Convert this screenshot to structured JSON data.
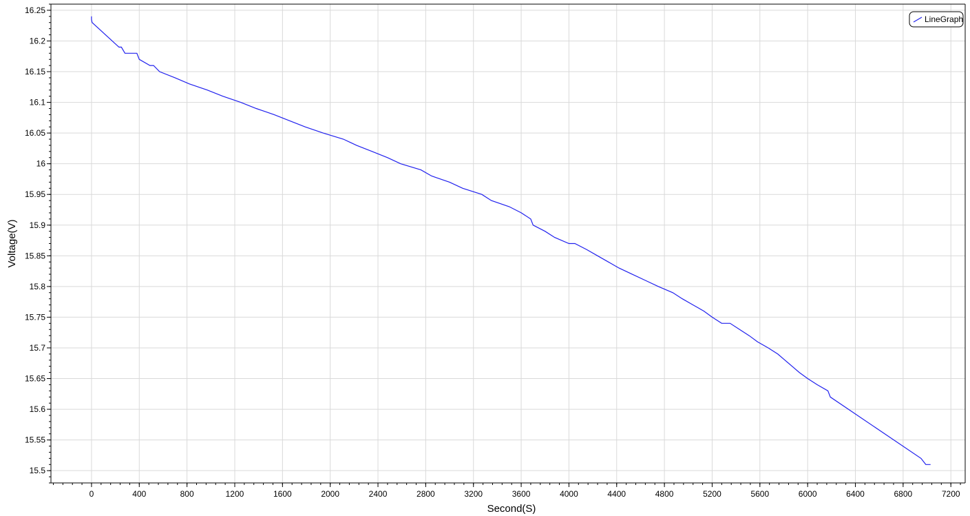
{
  "chart_data": {
    "type": "line",
    "title": "",
    "xlabel": "Second(S)",
    "ylabel": "Voltage(V)",
    "xlim": [
      -340,
      7320
    ],
    "ylim": [
      15.48,
      16.26
    ],
    "xticks": [
      0,
      400,
      800,
      1200,
      1600,
      2000,
      2400,
      2800,
      3200,
      3600,
      4000,
      4400,
      4800,
      5200,
      5600,
      6000,
      6400,
      6800,
      7200
    ],
    "xtick_labels": [
      "0",
      "400",
      "800",
      "1200",
      "1600",
      "2000",
      "2400",
      "2800",
      "3200",
      "3600",
      "4000",
      "4400",
      "4800",
      "5200",
      "5600",
      "6000",
      "6400",
      "6800",
      "7200"
    ],
    "yticks": [
      15.5,
      15.55,
      15.6,
      15.65,
      15.7,
      15.75,
      15.8,
      15.85,
      15.9,
      15.95,
      16.0,
      16.05,
      16.1,
      16.15,
      16.2,
      16.25
    ],
    "ytick_labels": [
      "15.5",
      "15.55",
      "15.6",
      "15.65",
      "15.7",
      "15.75",
      "15.8",
      "15.85",
      "15.9",
      "15.95",
      "16",
      "16.05",
      "16.1",
      "16.15",
      "16.2",
      "16.25"
    ],
    "grid": true,
    "legend": {
      "position": "top-right",
      "entries": [
        "LineGraph"
      ]
    },
    "series": [
      {
        "name": "LineGraph",
        "color": "#2020ee",
        "x": [
          0,
          0,
          5,
          230,
          250,
          280,
          380,
          400,
          490,
          520,
          570,
          700,
          820,
          970,
          1100,
          1250,
          1380,
          1530,
          1660,
          1790,
          1940,
          2110,
          2220,
          2350,
          2480,
          2590,
          2760,
          2850,
          3000,
          3110,
          3270,
          3350,
          3500,
          3600,
          3680,
          3700,
          3800,
          3880,
          4000,
          4050,
          4150,
          4240,
          4330,
          4420,
          4530,
          4640,
          4750,
          4870,
          4950,
          5040,
          5130,
          5200,
          5280,
          5350,
          5430,
          5510,
          5580,
          5670,
          5750,
          5810,
          5870,
          5930,
          6000,
          6080,
          6170,
          6190,
          6950,
          6990,
          7030
        ],
        "y": [
          16.24,
          16.235,
          16.23,
          16.19,
          16.19,
          16.18,
          16.18,
          16.17,
          16.16,
          16.16,
          16.15,
          16.14,
          16.13,
          16.12,
          16.11,
          16.1,
          16.09,
          16.08,
          16.07,
          16.06,
          16.05,
          16.04,
          16.03,
          16.02,
          16.01,
          16.0,
          15.99,
          15.98,
          15.97,
          15.96,
          15.95,
          15.94,
          15.93,
          15.92,
          15.91,
          15.9,
          15.89,
          15.88,
          15.87,
          15.87,
          15.86,
          15.85,
          15.84,
          15.83,
          15.82,
          15.81,
          15.8,
          15.79,
          15.78,
          15.77,
          15.76,
          15.75,
          15.74,
          15.74,
          15.73,
          15.72,
          15.71,
          15.7,
          15.69,
          15.68,
          15.67,
          15.66,
          15.65,
          15.64,
          15.63,
          15.62,
          15.52,
          15.51,
          15.51
        ]
      }
    ]
  }
}
